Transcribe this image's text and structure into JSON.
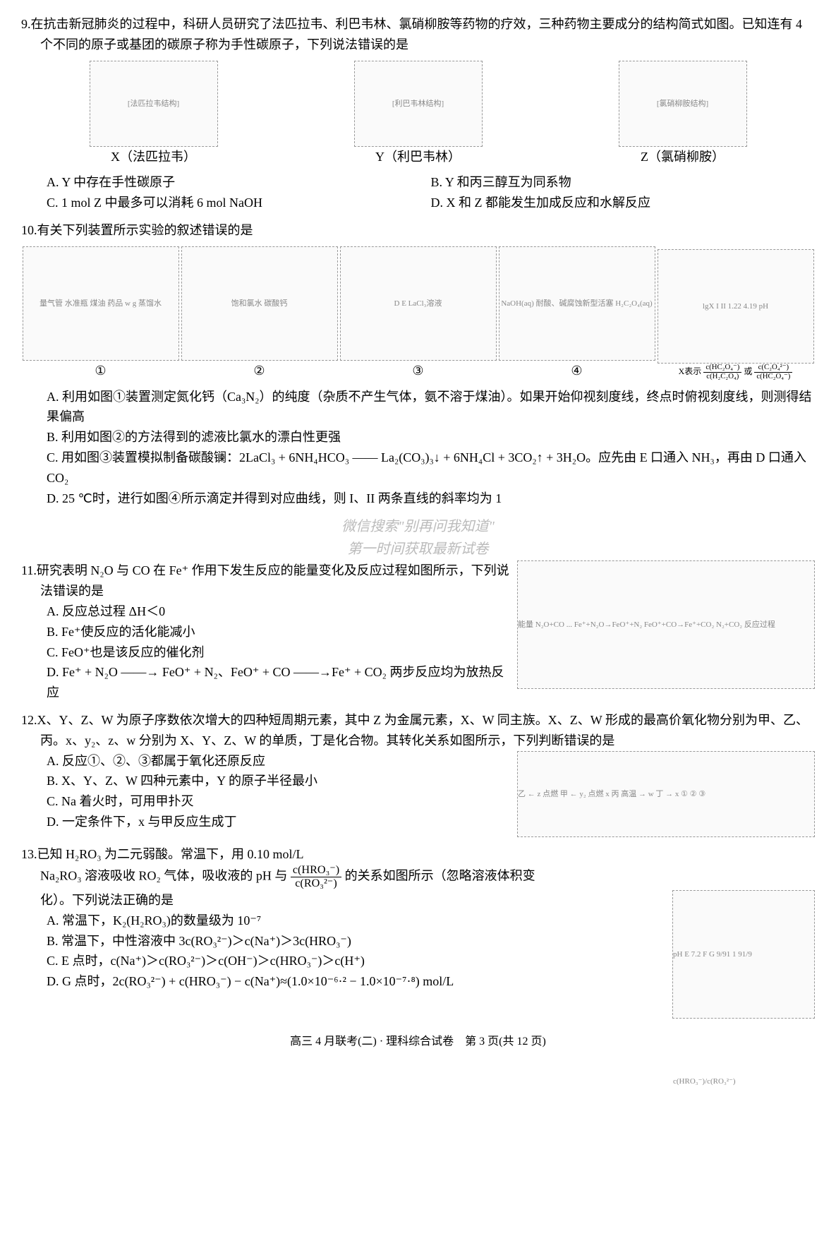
{
  "q9": {
    "num": "9.",
    "stem": "在抗击新冠肺炎的过程中，科研人员研究了法匹拉韦、利巴韦林、氯硝柳胺等药物的疗效，三种药物主要成分的结构简式如图。已知连有 4 个不同的原子或基团的碳原子称为手性碳原子，下列说法错误的是",
    "mol_labels": {
      "x": "X（法匹拉韦）",
      "y": "Y（利巴韦林）",
      "z": "Z（氯硝柳胺）"
    },
    "options": {
      "A": "A. Y 中存在手性碳原子",
      "B": "B. Y 和丙三醇互为同系物",
      "C": "C. 1 mol Z 中最多可以消耗 6 mol NaOH",
      "D": "D. X 和 Z 都能发生加成反应和水解反应"
    }
  },
  "q10": {
    "num": "10.",
    "stem": "有关下列装置所示实验的叙述错误的是",
    "app_labels": {
      "1": "①",
      "2": "②",
      "3": "③",
      "4": "④"
    },
    "app_text": {
      "1": "量气管 水准瓶 煤油 药品 w g 蒸馏水",
      "2": "饱和氯水 碳酸钙",
      "3": "D E LaCl₃溶液",
      "4": "NaOH(aq) 耐酸、碱腐蚀新型活塞 H₂C₂O₄(aq)",
      "graph": "lgX I II 1.22 4.19 pH",
      "x_expr_prefix": "X表示",
      "x_expr_or": "或"
    },
    "options": {
      "A": "A. 利用如图①装置测定氮化钙（Ca₃N₂）的纯度（杂质不产生气体，氨不溶于煤油）。如果开始仰视刻度线，终点时俯视刻度线，则测得结果偏高",
      "B": "B. 利用如图②的方法得到的滤液比氯水的漂白性更强",
      "C": "C. 用如图③装置模拟制备碳酸镧：2LaCl₃ + 6NH₄HCO₃ —— La₂(CO₃)₃↓ + 6NH₄Cl + 3CO₂↑ + 3H₂O。应先由 E 口通入 NH₃，再由 D 口通入 CO₂",
      "D": "D. 25 ℃时，进行如图④所示滴定并得到对应曲线，则 I、II 两条直线的斜率均为 1"
    }
  },
  "q11": {
    "num": "11.",
    "stem": "研究表明 N₂O 与 CO 在 Fe⁺ 作用下发生反应的能量变化及反应过程如图所示，下列说法错误的是",
    "diagram_text": "能量 N₂O+CO ... Fe⁺+N₂O→FeO⁺+N₂ FeO⁺+CO→Fe⁺+CO₂ N₂+CO₂ 反应过程",
    "options": {
      "A": "A. 反应总过程 ΔH＜0",
      "B": "B. Fe⁺使反应的活化能减小",
      "C": "C. FeO⁺也是该反应的催化剂",
      "D": "D. Fe⁺ + N₂O ——→ FeO⁺ + N₂、FeO⁺ + CO ——→Fe⁺ + CO₂ 两步反应均为放热反应"
    }
  },
  "q12": {
    "num": "12.",
    "stem": "X、Y、Z、W 为原子序数依次增大的四种短周期元素，其中 Z 为金属元素，X、W 同主族。X、Z、W 形成的最高价氧化物分别为甲、乙、丙。x、y₂、z、w 分别为 X、Y、Z、W 的单质，丁是化合物。其转化关系如图所示，下列判断错误的是",
    "diagram_text": "乙 ← z 点燃 甲 ← y₂ 点燃 x 丙 高温 → w 丁 → x ① ② ③",
    "options": {
      "A": "A. 反应①、②、③都属于氧化还原反应",
      "B": "B. X、Y、Z、W 四种元素中，Y 的原子半径最小",
      "C": "C. Na 着火时，可用甲扑灭",
      "D": "D. 一定条件下，x 与甲反应生成丁"
    }
  },
  "q13": {
    "num": "13.",
    "stem1": "已知 H₂RO₃ 为二元弱酸。常温下，用 0.10 mol/L",
    "stem2_pre": "Na₂RO₃ 溶液吸收 RO₂ 气体，吸收液的 pH 与",
    "stem2_post": "的关系如图所示（忽略溶液体积变",
    "stem3": "化）。下列说法正确的是",
    "graph_text": "pH E 7.2 F G 9/91 1 91/9 c(HRO₃⁻)/c(RO₃²⁻)",
    "options": {
      "A": "A. 常温下，K₂(H₂RO₃)的数量级为 10⁻⁷",
      "B": "B. 常温下，中性溶液中 3c(RO₃²⁻)＞c(Na⁺)＞3c(HRO₃⁻)",
      "C": "C. E 点时，c(Na⁺)＞c(RO₃²⁻)＞c(OH⁻)＞c(HRO₃⁻)＞c(H⁺)",
      "D": "D. G 点时，2c(RO₃²⁻) + c(HRO₃⁻) − c(Na⁺)≈(1.0×10⁻⁶·² − 1.0×10⁻⁷·⁸) mol/L"
    }
  },
  "watermark": {
    "line1": "微信搜索\"别再问我知道\"",
    "line2": "第一时间获取最新试卷"
  },
  "footer": "高三 4 月联考(二) · 理科综合试卷　第 3 页(共 12 页)"
}
